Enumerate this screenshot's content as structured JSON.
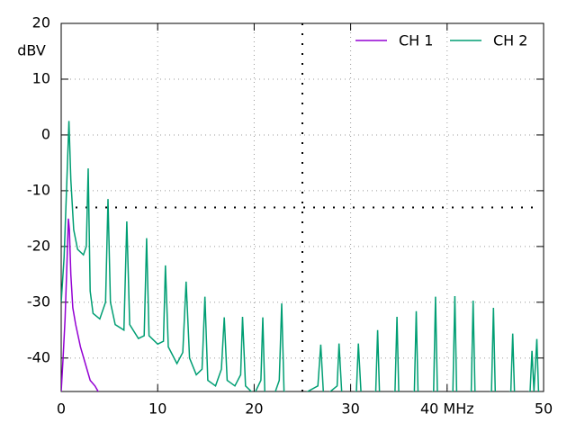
{
  "chart_data": {
    "type": "line",
    "ylabel": "dBV",
    "xlim": [
      0,
      50
    ],
    "xticks": [
      0,
      10,
      20,
      30,
      {
        "value": 40,
        "label": "40 MHz"
      },
      50
    ],
    "ylim": [
      -46,
      20
    ],
    "yticks": [
      20,
      10,
      0,
      -10,
      -20,
      -30,
      -40
    ],
    "grid": true,
    "legend": "top-right",
    "series": [
      {
        "name": "CH 1",
        "color": "#9400d3",
        "x": [
          0,
          0.2,
          0.4,
          0.6,
          0.75,
          0.85,
          1.0,
          1.2,
          1.5,
          2.0,
          2.5,
          3.0,
          3.5,
          4.0
        ],
        "values": [
          -46,
          -40,
          -33,
          -23,
          -15,
          -17,
          -25,
          -31,
          -34,
          -38,
          -41,
          -44,
          -45,
          -46.5
        ]
      },
      {
        "name": "CH 2",
        "color": "#009e73",
        "x": [
          0,
          0.3,
          0.55,
          0.8,
          1.0,
          1.3,
          1.7,
          2.3,
          2.6,
          2.8,
          3.0,
          3.3,
          4.0,
          4.6,
          4.85,
          5.1,
          5.6,
          6.5,
          6.8,
          7.1,
          8.0,
          8.6,
          8.85,
          9.1,
          10.0,
          10.6,
          10.8,
          11.1,
          12.0,
          12.6,
          12.95,
          13.3,
          14.0,
          14.6,
          14.9,
          15.2,
          16.0,
          16.6,
          16.9,
          17.2,
          18.0,
          18.6,
          18.8,
          19.1,
          20.0,
          20.7,
          20.9,
          21.1,
          22.0,
          22.6,
          22.85,
          23.1,
          24.5,
          26.6,
          26.9,
          27.2,
          28.6,
          28.8,
          29.1,
          30.6,
          30.8,
          31.1,
          32.6,
          32.8,
          33.0,
          34.6,
          34.8,
          35.0,
          36.6,
          36.8,
          37.0,
          38.6,
          38.8,
          39.0,
          40.6,
          40.8,
          41.0,
          42.5,
          42.7,
          42.9,
          44.6,
          44.8,
          45.0,
          46.6,
          46.8,
          47.0,
          48.6,
          48.8,
          49.0,
          49.3,
          49.5,
          50
        ],
        "values": [
          -30,
          -22,
          -10,
          2.5,
          -8,
          -17,
          -20.5,
          -21.5,
          -20,
          -6,
          -28,
          -32,
          -33,
          -30,
          -11.5,
          -30,
          -34,
          -35,
          -15.5,
          -34,
          -36.5,
          -36,
          -18.5,
          -36,
          -37.5,
          -37,
          -23.4,
          -38,
          -41,
          -39,
          -26.3,
          -40,
          -43,
          -42,
          -29,
          -44,
          -45,
          -42,
          -32.7,
          -44,
          -45,
          -43,
          -32.6,
          -45,
          -46.5,
          -44,
          -32.7,
          -46,
          -47,
          -44,
          -30.2,
          -46,
          -47,
          -45,
          -37.6,
          -47,
          -45,
          -37.4,
          -47,
          -46,
          -37.4,
          -47,
          -46,
          -35,
          -47,
          -46,
          -32.6,
          -47,
          -46,
          -31.6,
          -47,
          -46,
          -29,
          -47,
          -46,
          -28.9,
          -47,
          -46,
          -29.7,
          -47,
          -46,
          -31,
          -47,
          -46,
          -35.6,
          -47,
          -46,
          -38.7,
          -46,
          -36.6,
          -47,
          -47
        ]
      }
    ]
  }
}
